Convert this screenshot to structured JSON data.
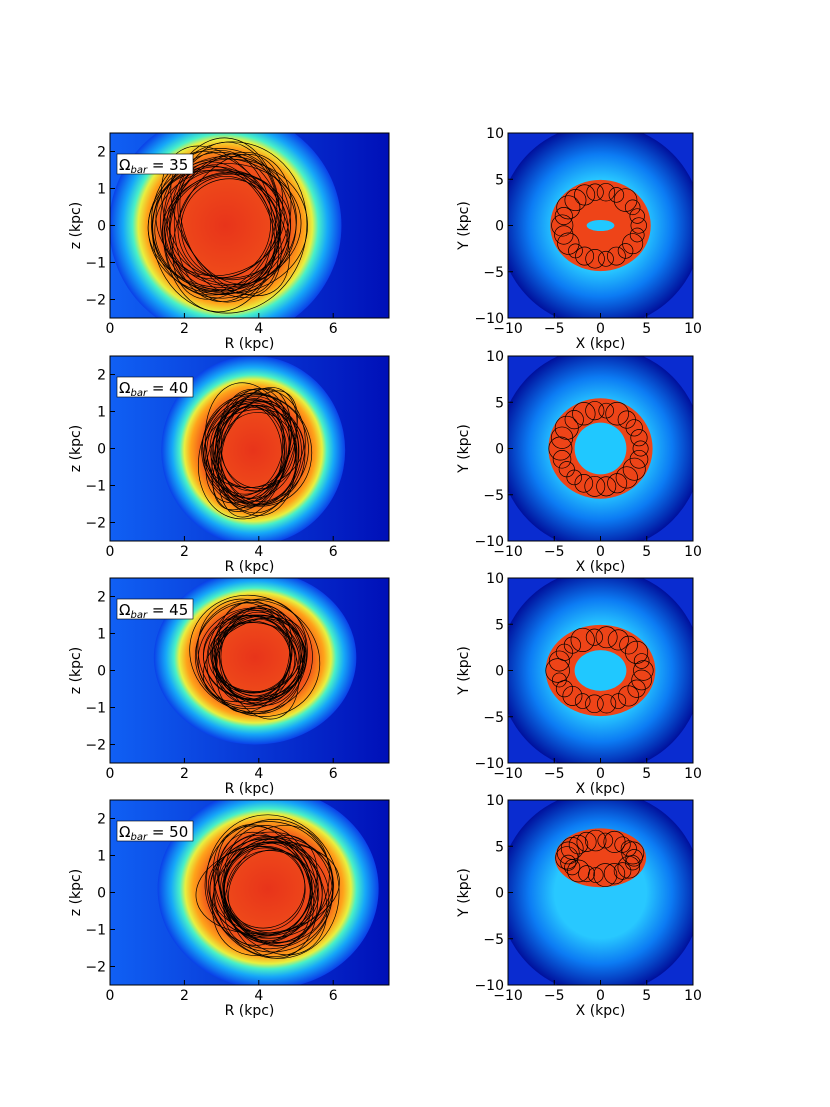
{
  "chart_data": [
    {
      "type": "heatmap",
      "panel": "R-z",
      "row": 0,
      "label_prefix": "Ω",
      "label_sub": "bar",
      "label_value": "35",
      "xlabel": "R (kpc)",
      "ylabel": "z (kpc)",
      "xlim": [
        0,
        7.5
      ],
      "ylim": [
        -2.5,
        2.5
      ],
      "xticks": [
        0,
        2,
        4,
        6
      ],
      "yticks": [
        -2,
        -1,
        0,
        1,
        2
      ],
      "orbit_extent": {
        "r": [
          1.0,
          5.2
        ],
        "z": [
          -2.4,
          2.4
        ]
      }
    },
    {
      "type": "heatmap",
      "panel": "X-Y",
      "row": 0,
      "xlabel": "X (kpc)",
      "ylabel": "Y (kpc)",
      "xlim": [
        -10,
        10
      ],
      "ylim": [
        -10,
        10
      ],
      "xticks": [
        -10,
        -5,
        0,
        5,
        10
      ],
      "yticks": [
        -10,
        -5,
        0,
        5,
        10
      ],
      "orbit_extent": {
        "x": [
          -5,
          5
        ],
        "y": [
          -4.5,
          4.5
        ],
        "hole": [
          1.5,
          0.6
        ]
      }
    },
    {
      "type": "heatmap",
      "panel": "R-z",
      "row": 1,
      "label_prefix": "Ω",
      "label_sub": "bar",
      "label_value": "40",
      "xlabel": "R (kpc)",
      "ylabel": "z (kpc)",
      "xlim": [
        0,
        7.5
      ],
      "ylim": [
        -2.5,
        2.5
      ],
      "xticks": [
        0,
        2,
        4,
        6
      ],
      "yticks": [
        -2,
        -1,
        0,
        1,
        2
      ],
      "orbit_extent": {
        "r": [
          2.4,
          5.3
        ],
        "z": [
          -1.9,
          1.8
        ]
      }
    },
    {
      "type": "heatmap",
      "panel": "X-Y",
      "row": 1,
      "xlabel": "X (kpc)",
      "ylabel": "Y (kpc)",
      "xlim": [
        -10,
        10
      ],
      "ylim": [
        -10,
        10
      ],
      "xticks": [
        -10,
        -5,
        0,
        5,
        10
      ],
      "yticks": [
        -10,
        -5,
        0,
        5,
        10
      ],
      "orbit_extent": {
        "x": [
          -5.2,
          5.2
        ],
        "y": [
          -5,
          5
        ],
        "hole": [
          2.8,
          2.8
        ]
      }
    },
    {
      "type": "heatmap",
      "panel": "R-z",
      "row": 2,
      "label_prefix": "Ω",
      "label_sub": "bar",
      "label_value": "45",
      "xlabel": "R (kpc)",
      "ylabel": "z (kpc)",
      "xlim": [
        0,
        7.5
      ],
      "ylim": [
        -2.5,
        2.5
      ],
      "xticks": [
        0,
        2,
        4,
        6
      ],
      "yticks": [
        -2,
        -1,
        0,
        1,
        2
      ],
      "orbit_extent": {
        "r": [
          2.2,
          5.6
        ],
        "z": [
          -1.3,
          2.0
        ]
      }
    },
    {
      "type": "heatmap",
      "panel": "X-Y",
      "row": 2,
      "xlabel": "X (kpc)",
      "ylabel": "Y (kpc)",
      "xlim": [
        -10,
        10
      ],
      "ylim": [
        -10,
        10
      ],
      "xticks": [
        -10,
        -5,
        0,
        5,
        10
      ],
      "yticks": [
        -10,
        -5,
        0,
        5,
        10
      ],
      "orbit_extent": {
        "x": [
          -5.5,
          5.5
        ],
        "y": [
          -4.5,
          4.5
        ],
        "hole": [
          2.8,
          2.2
        ]
      }
    },
    {
      "type": "heatmap",
      "panel": "R-z",
      "row": 3,
      "label_prefix": "Ω",
      "label_sub": "bar",
      "label_value": "50",
      "xlabel": "R (kpc)",
      "ylabel": "z (kpc)",
      "xlim": [
        0,
        7.5
      ],
      "ylim": [
        -2.5,
        2.5
      ],
      "xticks": [
        0,
        2,
        4,
        6
      ],
      "yticks": [
        -2,
        -1,
        0,
        1,
        2
      ],
      "orbit_extent": {
        "r": [
          2.3,
          6.2
        ],
        "z": [
          -1.9,
          2.1
        ]
      }
    },
    {
      "type": "heatmap",
      "panel": "X-Y",
      "row": 3,
      "xlabel": "X (kpc)",
      "ylabel": "Y (kpc)",
      "xlim": [
        -10,
        10
      ],
      "ylim": [
        -10,
        10
      ],
      "xticks": [
        -10,
        -5,
        0,
        5,
        10
      ],
      "yticks": [
        -10,
        -5,
        0,
        5,
        10
      ],
      "orbit_extent": {
        "x": [
          -4.5,
          4.5
        ],
        "y": [
          1,
          6.5
        ]
      }
    }
  ]
}
